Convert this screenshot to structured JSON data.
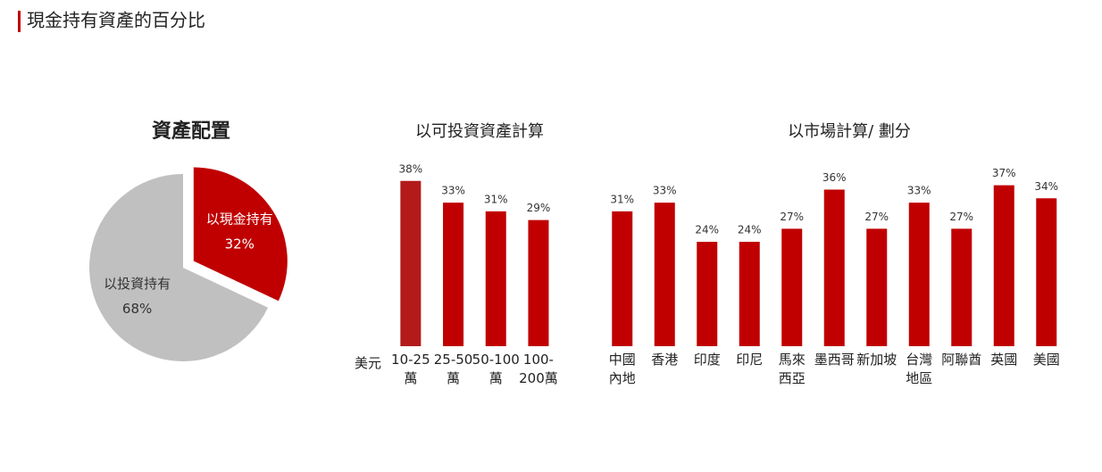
{
  "header": {
    "title": "現金持有資產的百分比"
  },
  "chart_data": [
    {
      "type": "pie",
      "title": "資產配置",
      "categories": [
        "以現金持有",
        "以投資持有"
      ],
      "values": [
        32,
        68
      ],
      "value_labels": [
        "32%",
        "68%"
      ],
      "colors": [
        "#c00000",
        "#c0c0c0"
      ],
      "label_colors": [
        "#ffffff",
        "#333333"
      ],
      "explode": [
        true,
        false
      ]
    },
    {
      "type": "bar",
      "title": "以可投資資產計算",
      "xlabel": "美元",
      "categories": [
        "10-25\n萬",
        "25-50\n萬",
        "50-100\n萬",
        "100-\n200萬"
      ],
      "values": [
        38,
        33,
        31,
        29
      ],
      "value_labels": [
        "38%",
        "33%",
        "31%",
        "29%"
      ],
      "colors": [
        "#b31b1b",
        "#c00000",
        "#c00000",
        "#c00000"
      ],
      "ylim": [
        0,
        40
      ]
    },
    {
      "type": "bar",
      "title": "以市場計算/ 劃分",
      "categories": [
        "中國\n內地",
        "香港",
        "印度",
        "印尼",
        "馬來\n西亞",
        "墨西哥",
        "新加坡",
        "台灣\n地區",
        "阿聯酋",
        "英國",
        "美國"
      ],
      "values": [
        31,
        33,
        24,
        24,
        27,
        36,
        27,
        33,
        27,
        37,
        34
      ],
      "value_labels": [
        "31%",
        "33%",
        "24%",
        "24%",
        "27%",
        "36%",
        "27%",
        "33%",
        "27%",
        "37%",
        "34%"
      ],
      "colors": [
        "#c00000",
        "#c00000",
        "#c00000",
        "#c00000",
        "#c00000",
        "#c00000",
        "#c00000",
        "#c00000",
        "#c00000",
        "#c00000",
        "#c00000"
      ],
      "ylim": [
        0,
        40
      ]
    }
  ]
}
